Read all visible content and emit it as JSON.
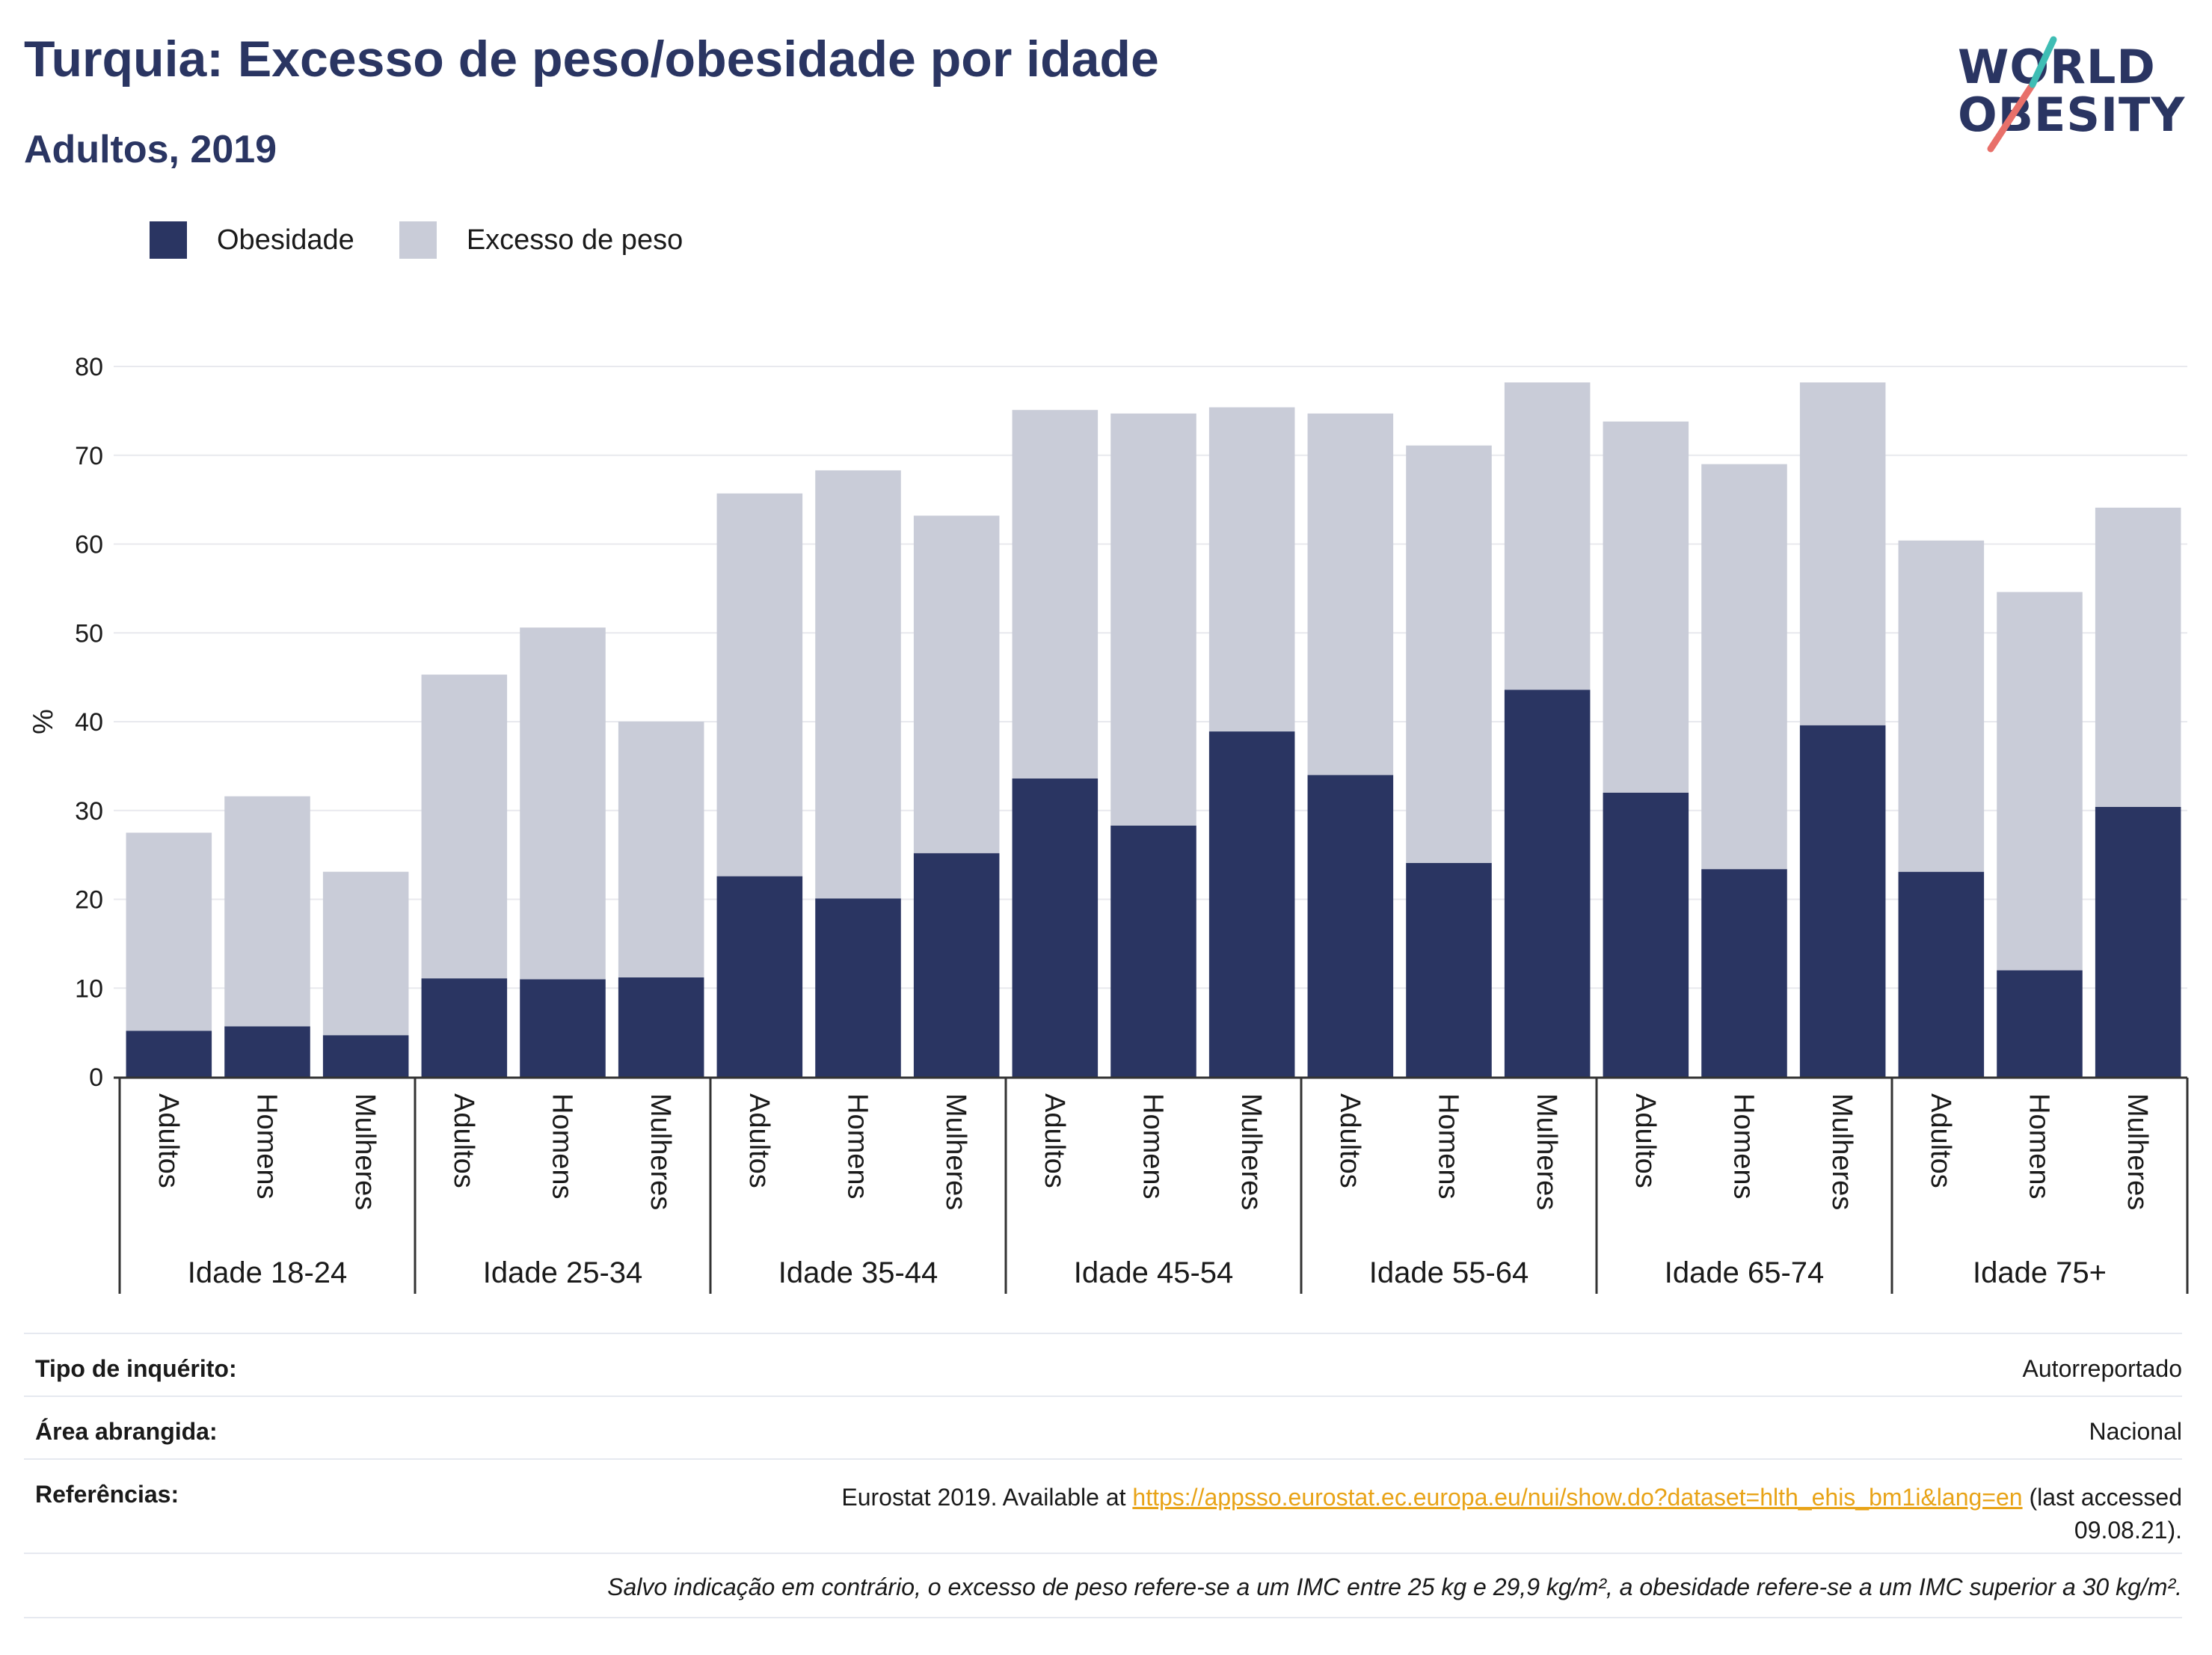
{
  "header": {
    "title": "Turquia: Excesso de peso/obesidade por idade",
    "subtitle": "Adultos, 2019"
  },
  "logo": {
    "line1": "WORLD",
    "line2": "OBESITY"
  },
  "legend": [
    {
      "label": "Obesidade",
      "color": "#2a3562"
    },
    {
      "label": "Excesso de peso",
      "color": "#c9ccd8"
    }
  ],
  "chart_data": {
    "type": "bar",
    "stacked": true,
    "ylabel": "%",
    "ylim": [
      0,
      80
    ],
    "yticks": [
      0,
      10,
      20,
      30,
      40,
      50,
      60,
      70,
      80
    ],
    "grid": true,
    "legend_position": "top-left",
    "groups": [
      "Idade 18-24",
      "Idade 25-34",
      "Idade 35-44",
      "Idade 45-54",
      "Idade 55-64",
      "Idade 65-74",
      "Idade 75+"
    ],
    "subcategories": [
      "Adultos",
      "Homens",
      "Mulheres"
    ],
    "series": [
      {
        "name": "Obesidade",
        "color": "#2a3562",
        "values": [
          5.2,
          5.7,
          4.7,
          11.1,
          11.0,
          11.2,
          22.6,
          20.1,
          25.2,
          33.6,
          28.3,
          38.9,
          34.0,
          24.1,
          43.6,
          32.0,
          23.4,
          39.6,
          23.1,
          12.0,
          30.4
        ]
      },
      {
        "name": "Excesso de peso",
        "color": "#c9ccd8",
        "values": [
          22.3,
          25.9,
          18.4,
          34.2,
          39.6,
          28.8,
          43.1,
          48.2,
          38.0,
          41.5,
          46.4,
          36.5,
          40.7,
          47.0,
          34.6,
          41.8,
          45.6,
          38.6,
          37.3,
          42.6,
          33.7
        ]
      }
    ]
  },
  "info": {
    "survey_type_label": "Tipo de inquérito:",
    "survey_type_value": "Autorreportado",
    "area_label": "Área abrangida:",
    "area_value": "Nacional",
    "references_label": "Referências:",
    "references_prefix": "Eurostat 2019. Available at ",
    "references_link": "https://appsso.eurostat.ec.europa.eu/nui/show.do?dataset=hlth_ehis_bm1i&lang=en",
    "references_suffix": " (last accessed",
    "references_date": "09.08.21).",
    "note": "Salvo indicação em contrário, o excesso de peso refere-se a um IMC entre 25 kg e 29,9 kg/m², a obesidade refere-se a um IMC superior a 30 kg/m²."
  }
}
